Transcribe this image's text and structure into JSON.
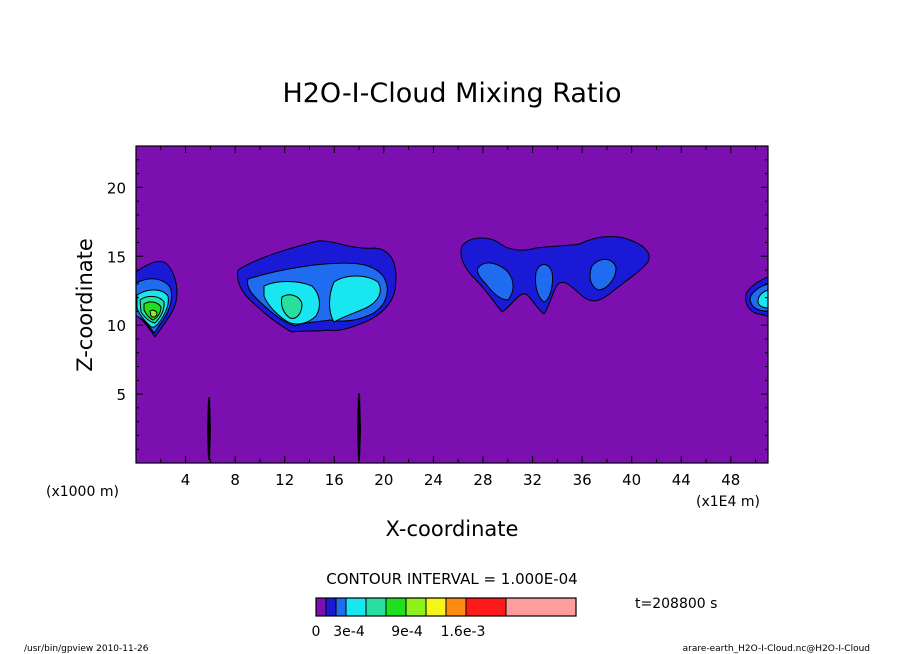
{
  "chart_data": {
    "type": "heatmap",
    "subtype": "filled-contour",
    "title": "H2O-I-Cloud Mixing Ratio",
    "xlabel": "X-coordinate",
    "ylabel": "Z-coordinate",
    "x_unit_left": "(x1000 m)",
    "x_unit_right": "(x1E4 m)",
    "xlim": [
      0,
      51
    ],
    "ylim": [
      0,
      23
    ],
    "x_ticks": [
      "4",
      "8",
      "12",
      "16",
      "20",
      "24",
      "28",
      "32",
      "36",
      "40",
      "44",
      "48"
    ],
    "y_ticks": [
      "5",
      "10",
      "15",
      "20"
    ],
    "contour_interval": "CONTOUR INTERVAL = 1.000E-04",
    "time_label": "t=208800 s",
    "colorbar": {
      "labels": [
        "0",
        "3e-4",
        "9e-4",
        "1.6e-3"
      ],
      "colors": [
        "#7b0fb0",
        "#1a1ad6",
        "#1f6cf0",
        "#18e6f0",
        "#27e0a0",
        "#1ee01e",
        "#8cf21a",
        "#f5f51a",
        "#ff8a12",
        "#ff1a1a",
        "#ff9d9d"
      ]
    },
    "regions": [
      {
        "name": "left-edge-cloud",
        "x_range": [
          0,
          3.5
        ],
        "z_range": [
          9.5,
          14.5
        ],
        "peak_value": "about 9e-4"
      },
      {
        "name": "central-cloud",
        "x_range": [
          8,
          21
        ],
        "z_range": [
          9.5,
          16
        ],
        "peak_value": "about 6e-4"
      },
      {
        "name": "right-central-cloud",
        "x_range": [
          26,
          42
        ],
        "z_range": [
          10.5,
          16.5
        ],
        "peak_value": "about 2e-4"
      },
      {
        "name": "right-edge-cloud",
        "x_range": [
          49,
          51
        ],
        "z_range": [
          11,
          13.5
        ],
        "peak_value": "about 3e-4"
      }
    ],
    "grid": false,
    "legend_position": "bottom"
  },
  "footer": {
    "left": "/usr/bin/gpview  2010-11-26",
    "right": "arare-earth_H2O-I-Cloud.nc@H2O-I-Cloud"
  }
}
